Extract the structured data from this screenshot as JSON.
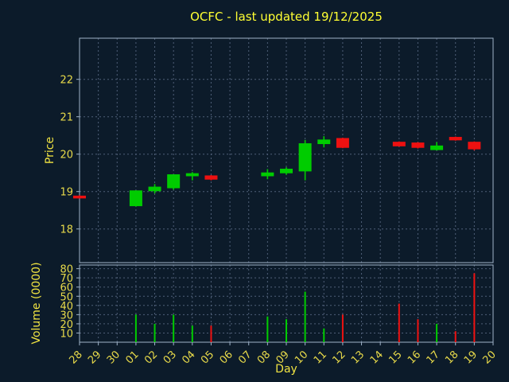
{
  "title": "OCFC - last updated 19/12/2025",
  "colors": {
    "background": "#0c1b2a",
    "title": "#ffff33",
    "axis_label": "#f0e342",
    "tick_label": "#e8da4a",
    "grid": "#4f5f78",
    "spine": "#9fb3c8",
    "up": "#00cc00",
    "down": "#ee1111"
  },
  "chart_data": [
    {
      "type": "candlestick",
      "title": "OCFC - last updated 19/12/2025",
      "xlabel": "Day",
      "ylabel": "Price",
      "x_ticks": [
        "28",
        "29",
        "30",
        "01",
        "02",
        "03",
        "04",
        "05",
        "06",
        "07",
        "08",
        "09",
        "10",
        "11",
        "12",
        "13",
        "14",
        "15",
        "16",
        "17",
        "18",
        "19",
        "20"
      ],
      "y_ticks": [
        18,
        19,
        20,
        21,
        22
      ],
      "ylim": [
        17.1,
        23.1
      ],
      "grid": "dashed",
      "candles": [
        {
          "day": "28",
          "open": 18.88,
          "high": 18.9,
          "low": 18.82,
          "close": 18.84
        },
        {
          "day": "01",
          "open": 18.62,
          "high": 19.03,
          "low": 18.6,
          "close": 19.02
        },
        {
          "day": "02",
          "open": 19.02,
          "high": 19.2,
          "low": 18.95,
          "close": 19.12
        },
        {
          "day": "03",
          "open": 19.1,
          "high": 19.46,
          "low": 19.05,
          "close": 19.45
        },
        {
          "day": "04",
          "open": 19.42,
          "high": 19.52,
          "low": 19.3,
          "close": 19.48
        },
        {
          "day": "05",
          "open": 19.42,
          "high": 19.44,
          "low": 19.3,
          "close": 19.33
        },
        {
          "day": "08",
          "open": 19.42,
          "high": 19.6,
          "low": 19.33,
          "close": 19.5
        },
        {
          "day": "09",
          "open": 19.5,
          "high": 19.65,
          "low": 19.45,
          "close": 19.6
        },
        {
          "day": "10",
          "open": 19.55,
          "high": 20.38,
          "low": 19.3,
          "close": 20.28
        },
        {
          "day": "11",
          "open": 20.28,
          "high": 20.48,
          "low": 20.18,
          "close": 20.38
        },
        {
          "day": "12",
          "open": 20.42,
          "high": 20.44,
          "low": 20.16,
          "close": 20.18
        },
        {
          "day": "15",
          "open": 20.32,
          "high": 20.34,
          "low": 20.2,
          "close": 20.22
        },
        {
          "day": "16",
          "open": 20.3,
          "high": 20.32,
          "low": 20.15,
          "close": 20.18
        },
        {
          "day": "17",
          "open": 20.12,
          "high": 20.32,
          "low": 20.1,
          "close": 20.22
        },
        {
          "day": "18",
          "open": 20.45,
          "high": 20.47,
          "low": 20.36,
          "close": 20.38
        },
        {
          "day": "19",
          "open": 20.32,
          "high": 20.34,
          "low": 20.1,
          "close": 20.14
        }
      ]
    },
    {
      "type": "bar",
      "ylabel": "Volume (0000)",
      "y_ticks": [
        10,
        20,
        30,
        40,
        50,
        60,
        70,
        80
      ],
      "ylim": [
        0,
        84
      ],
      "grid": "dashed",
      "bars": [
        {
          "day": "01",
          "value": 30,
          "dir": "up"
        },
        {
          "day": "02",
          "value": 20,
          "dir": "up"
        },
        {
          "day": "03",
          "value": 30,
          "dir": "up"
        },
        {
          "day": "04",
          "value": 18,
          "dir": "up"
        },
        {
          "day": "05",
          "value": 18,
          "dir": "down"
        },
        {
          "day": "08",
          "value": 28,
          "dir": "up"
        },
        {
          "day": "09",
          "value": 25,
          "dir": "up"
        },
        {
          "day": "10",
          "value": 55,
          "dir": "up"
        },
        {
          "day": "11",
          "value": 15,
          "dir": "up"
        },
        {
          "day": "12",
          "value": 30,
          "dir": "down"
        },
        {
          "day": "15",
          "value": 42,
          "dir": "down"
        },
        {
          "day": "16",
          "value": 25,
          "dir": "down"
        },
        {
          "day": "17",
          "value": 20,
          "dir": "up"
        },
        {
          "day": "18",
          "value": 12,
          "dir": "down"
        },
        {
          "day": "19",
          "value": 75,
          "dir": "down"
        }
      ]
    }
  ]
}
